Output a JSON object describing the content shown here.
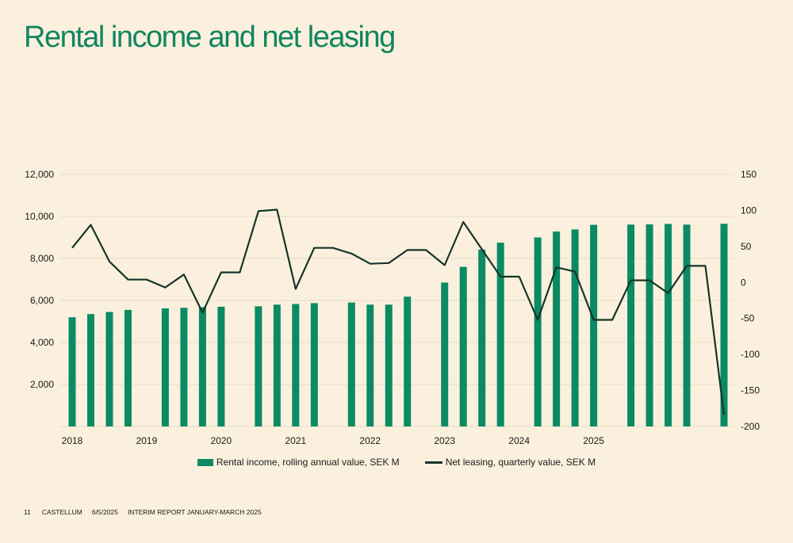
{
  "page": {
    "title": "Rental income and net leasing",
    "footer": {
      "page_number": "11",
      "company": "CASTELLUM",
      "date": "6/5/2025",
      "report": "INTERIM REPORT JANUARY-MARCH 2025"
    }
  },
  "colors": {
    "bar": "#0b8a63",
    "line": "#16352a",
    "grid": "#e7dcc8"
  },
  "chart_data": {
    "type": "bar+line",
    "x_tick_labels": [
      "2018",
      "2019",
      "2020",
      "2021",
      "2022",
      "2023",
      "2024",
      "2025"
    ],
    "y_left": {
      "ticks": [
        "2,000",
        "4,000",
        "6,000",
        "8,000",
        "10,000",
        "12,000"
      ],
      "range": [
        0,
        12000
      ]
    },
    "y_right": {
      "ticks": [
        "150",
        "100",
        "50",
        "0",
        "-50",
        "-100",
        "-150",
        "-200"
      ],
      "range": [
        -200,
        150
      ]
    },
    "grid": true,
    "legend_position": "bottom-center",
    "series": [
      {
        "name": "Rental income, rolling annual value, SEK M",
        "type": "bar",
        "axis": "left",
        "points": [
          {
            "q": "2018-Q1",
            "v": 5200
          },
          {
            "q": "2018-Q2",
            "v": 5350
          },
          {
            "q": "2018-Q3",
            "v": 5450
          },
          {
            "q": "2018-Q4",
            "v": 5550
          },
          {
            "q": "2019-Q2",
            "v": 5620
          },
          {
            "q": "2019-Q3",
            "v": 5650
          },
          {
            "q": "2019-Q4",
            "v": 5680
          },
          {
            "q": "2020-Q1",
            "v": 5700
          },
          {
            "q": "2020-Q3",
            "v": 5720
          },
          {
            "q": "2020-Q4",
            "v": 5800
          },
          {
            "q": "2021-Q1",
            "v": 5830
          },
          {
            "q": "2021-Q2",
            "v": 5870
          },
          {
            "q": "2021-Q4",
            "v": 5900
          },
          {
            "q": "2022-Q1",
            "v": 5800
          },
          {
            "q": "2022-Q2",
            "v": 5800
          },
          {
            "q": "2022-Q3",
            "v": 6180
          },
          {
            "q": "2023-Q1",
            "v": 6850
          },
          {
            "q": "2023-Q2",
            "v": 7600
          },
          {
            "q": "2023-Q3",
            "v": 8420
          },
          {
            "q": "2023-Q4",
            "v": 8750
          },
          {
            "q": "2024-Q2",
            "v": 9000
          },
          {
            "q": "2024-Q3",
            "v": 9280
          },
          {
            "q": "2024-Q4",
            "v": 9380
          },
          {
            "q": "2025-Q1",
            "v": 9600
          },
          {
            "q": "2025-Q3",
            "v": 9610
          },
          {
            "q": "2025-Q4",
            "v": 9620
          },
          {
            "q": "2026-Q1",
            "v": 9640
          },
          {
            "q": "2026-Q2",
            "v": 9610
          },
          {
            "q": "2026-Q4",
            "v": 9650
          }
        ]
      },
      {
        "name": "Net leasing, quarterly value, SEK M",
        "type": "line",
        "axis": "right",
        "points": [
          {
            "q": "2018-Q1",
            "v": 48
          },
          {
            "q": "2018-Q2",
            "v": 80
          },
          {
            "q": "2018-Q3",
            "v": 29
          },
          {
            "q": "2018-Q4",
            "v": 4
          },
          {
            "q": "2019-Q1",
            "v": 4
          },
          {
            "q": "2019-Q2",
            "v": -7
          },
          {
            "q": "2019-Q3",
            "v": 11
          },
          {
            "q": "2019-Q4",
            "v": -42
          },
          {
            "q": "2020-Q1",
            "v": 14
          },
          {
            "q": "2020-Q2",
            "v": 14
          },
          {
            "q": "2020-Q3",
            "v": 99
          },
          {
            "q": "2020-Q4",
            "v": 101
          },
          {
            "q": "2021-Q1",
            "v": -9
          },
          {
            "q": "2021-Q2",
            "v": 48
          },
          {
            "q": "2021-Q3",
            "v": 48
          },
          {
            "q": "2021-Q4",
            "v": 40
          },
          {
            "q": "2022-Q1",
            "v": 26
          },
          {
            "q": "2022-Q2",
            "v": 27
          },
          {
            "q": "2022-Q3",
            "v": 45
          },
          {
            "q": "2022-Q4",
            "v": 45
          },
          {
            "q": "2023-Q1",
            "v": 24
          },
          {
            "q": "2023-Q2",
            "v": 84
          },
          {
            "q": "2023-Q3",
            "v": 46
          },
          {
            "q": "2023-Q4",
            "v": 8
          },
          {
            "q": "2024-Q1",
            "v": 8
          },
          {
            "q": "2024-Q2",
            "v": -52
          },
          {
            "q": "2024-Q3",
            "v": 21
          },
          {
            "q": "2024-Q4",
            "v": 15
          },
          {
            "q": "2025-Q1",
            "v": -52
          },
          {
            "q": "2025-Q2",
            "v": -52
          },
          {
            "q": "2025-Q3",
            "v": 3
          },
          {
            "q": "2025-Q4",
            "v": 3
          },
          {
            "q": "2026-Q1",
            "v": -15
          },
          {
            "q": "2026-Q2",
            "v": 23
          },
          {
            "q": "2026-Q3",
            "v": 23
          },
          {
            "q": "2026-Q4",
            "v": -184
          }
        ]
      }
    ]
  }
}
